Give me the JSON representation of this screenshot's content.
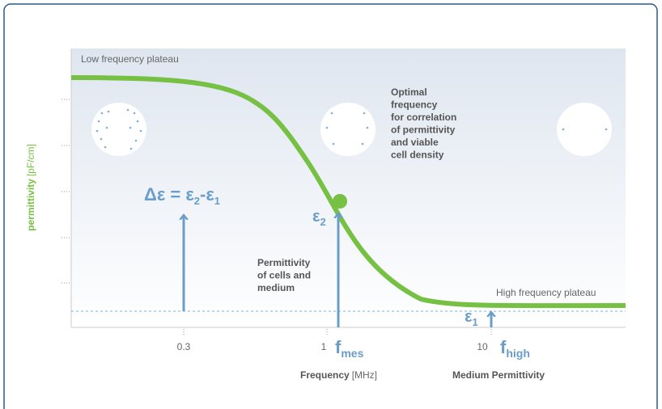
{
  "labels": {
    "low_plateau": "Low frequency plateau",
    "high_plateau": "High frequency plateau",
    "optimal": [
      "Optimal",
      "frequency",
      "for correlation",
      "of permittivity",
      "and viable",
      "cell density"
    ],
    "cells_medium": [
      "Permittivity",
      "of cells and",
      "medium"
    ],
    "delta": {
      "base": "Δε = ε",
      "sub1": "2",
      "mid": "-ε",
      "sub2": "1"
    },
    "eps2": {
      "base": "ε",
      "sub": "2"
    },
    "eps1": {
      "base": "ε",
      "sub": "1"
    },
    "f_mes": {
      "base": "f",
      "sub": "mes"
    },
    "f_high": {
      "base": "f",
      "sub": "high"
    }
  },
  "x_axis": {
    "ticks": [
      "0.3",
      "1",
      "10"
    ],
    "title": "Frequency",
    "unit": "[MHz]",
    "second_title": "Medium Permittivity"
  },
  "y_axis": {
    "title": "permittivity",
    "unit": "[pF/cm]"
  }
}
